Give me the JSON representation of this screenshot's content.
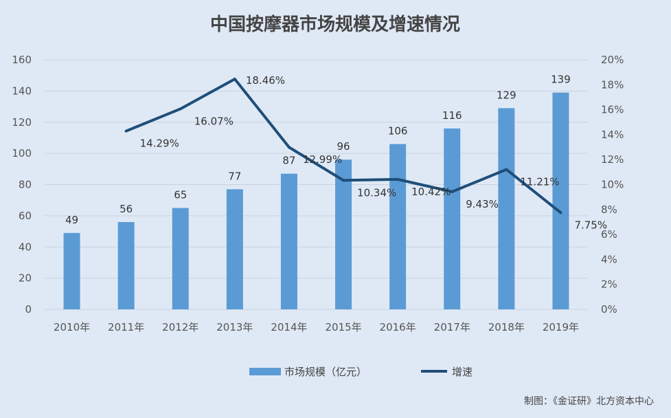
{
  "chart_data": {
    "type": "bar",
    "title": "中国按摩器市场规模及增速情况",
    "categories": [
      "2010年",
      "2011年",
      "2012年",
      "2013年",
      "2014年",
      "2015年",
      "2016年",
      "2017年",
      "2018年",
      "2019年"
    ],
    "series": [
      {
        "name": "市场规模（亿元）",
        "type": "bar",
        "axis": "left",
        "values": [
          49,
          56,
          65,
          77,
          87,
          96,
          106,
          116,
          129,
          139
        ],
        "labels": [
          "49",
          "56",
          "65",
          "77",
          "87",
          "96",
          "106",
          "116",
          "129",
          "139"
        ],
        "color": "#5b9bd5"
      },
      {
        "name": "增速",
        "type": "line",
        "axis": "right",
        "values": [
          null,
          14.29,
          16.07,
          18.46,
          12.99,
          10.34,
          10.42,
          9.43,
          11.21,
          7.75
        ],
        "labels": [
          null,
          "14.29%",
          "16.07%",
          "18.46%",
          "12.99%",
          "10.34%",
          "10.42%",
          "9.43%",
          "11.21%",
          "7.75%"
        ],
        "color": "#1f4e79"
      }
    ],
    "y_left": {
      "min": 0,
      "max": 160,
      "step": 20,
      "ticks": [
        "0",
        "20",
        "40",
        "60",
        "80",
        "100",
        "120",
        "140",
        "160"
      ]
    },
    "y_right": {
      "min": 0,
      "max": 20,
      "step": 2,
      "ticks": [
        "0%",
        "2%",
        "4%",
        "6%",
        "8%",
        "10%",
        "12%",
        "14%",
        "16%",
        "18%",
        "20%"
      ]
    },
    "grid": true,
    "legend_position": "bottom",
    "source": "制图：《金证研》北方资本中心"
  }
}
